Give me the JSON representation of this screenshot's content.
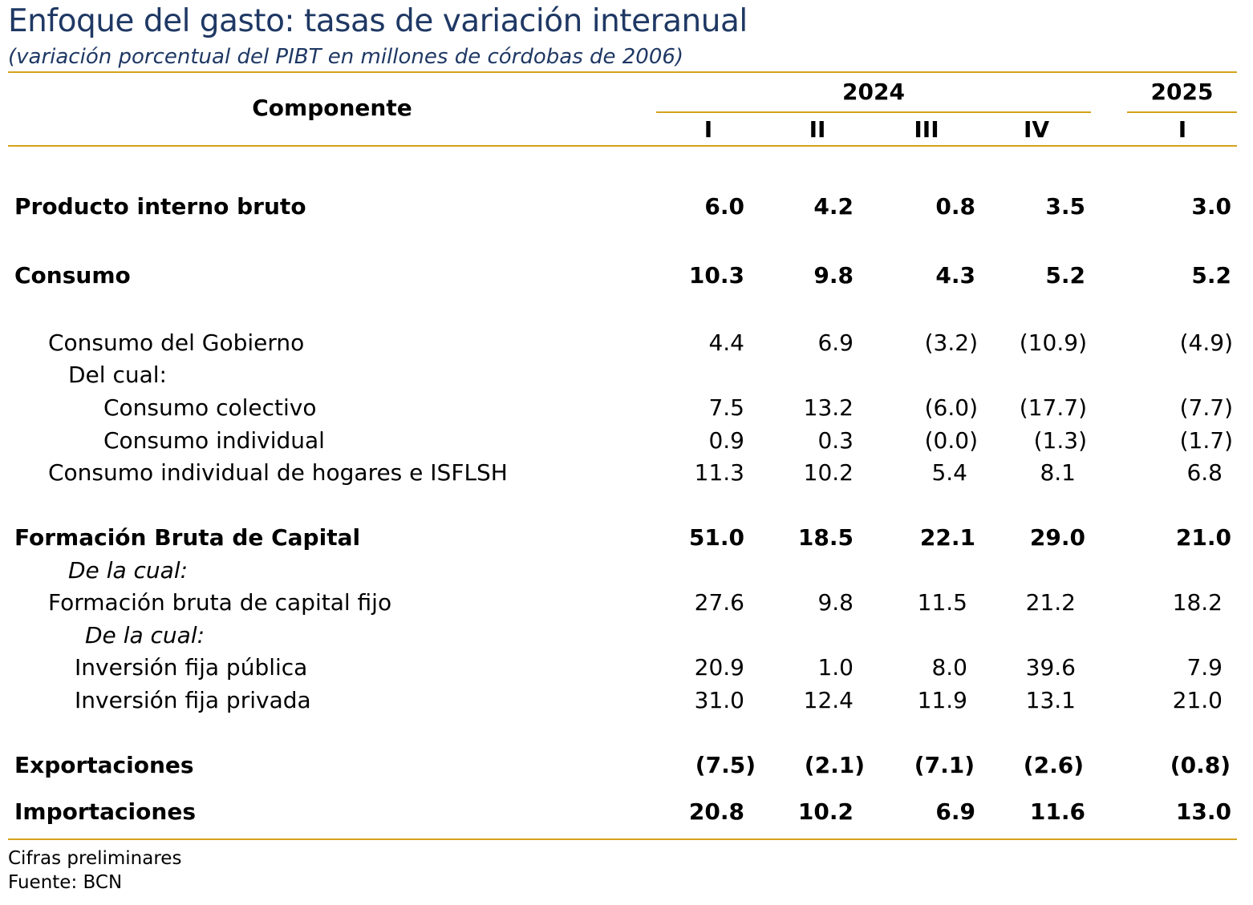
{
  "title": "Enfoque del gasto: tasas de variación interanual",
  "subtitle": "(variación porcentual del PIBT en millones de córdobas de 2006)",
  "header": {
    "component_label": "Componente",
    "year_2024": "2024",
    "year_2025": "2025",
    "quarters": [
      "I",
      "II",
      "III",
      "IV",
      "I"
    ]
  },
  "rows": [
    {
      "label": "Producto interno bruto",
      "values": [
        "6.0",
        "4.2",
        "0.8",
        "3.5",
        "3.0"
      ]
    },
    {
      "label": "Consumo",
      "values": [
        "10.3",
        "9.8",
        "4.3",
        "5.2",
        "5.2"
      ]
    },
    {
      "label": "Consumo del Gobierno",
      "values": [
        "4.4",
        "6.9",
        "(3.2)",
        "(10.9)",
        "(4.9)"
      ]
    },
    {
      "label": "Del cual:",
      "values": [
        "",
        "",
        "",
        "",
        ""
      ]
    },
    {
      "label": "Consumo colectivo",
      "values": [
        "7.5",
        "13.2",
        "(6.0)",
        "(17.7)",
        "(7.7)"
      ]
    },
    {
      "label": "Consumo individual",
      "values": [
        "0.9",
        "0.3",
        "(0.0)",
        "(1.3)",
        "(1.7)"
      ]
    },
    {
      "label": "Consumo individual de hogares e ISFLSH",
      "values": [
        "11.3",
        "10.2",
        "5.4",
        "8.1",
        "6.8"
      ]
    },
    {
      "label": "Formación Bruta de Capital",
      "values": [
        "51.0",
        "18.5",
        "22.1",
        "29.0",
        "21.0"
      ]
    },
    {
      "label": "De la cual:",
      "values": [
        "",
        "",
        "",
        "",
        ""
      ]
    },
    {
      "label": "Formación bruta de capital fijo",
      "values": [
        "27.6",
        "9.8",
        "11.5",
        "21.2",
        "18.2"
      ]
    },
    {
      "label": "De la cual:",
      "values": [
        "",
        "",
        "",
        "",
        ""
      ]
    },
    {
      "label": "Inversión fija pública",
      "values": [
        "20.9",
        "1.0",
        "8.0",
        "39.6",
        "7.9"
      ]
    },
    {
      "label": "Inversión fija privada",
      "values": [
        "31.0",
        "12.4",
        "11.9",
        "13.1",
        "21.0"
      ]
    },
    {
      "label": "Exportaciones",
      "values": [
        "(7.5)",
        "(2.1)",
        "(7.1)",
        "(2.6)",
        "(0.8)"
      ]
    },
    {
      "label": "Importaciones",
      "values": [
        "20.8",
        "10.2",
        "6.9",
        "11.6",
        "13.0"
      ]
    }
  ],
  "footnotes": {
    "note": "Cifras preliminares",
    "source": "Fuente: BCN"
  },
  "colors": {
    "title": "#1f3864",
    "rule": "#d4a21c",
    "text": "#000000"
  }
}
